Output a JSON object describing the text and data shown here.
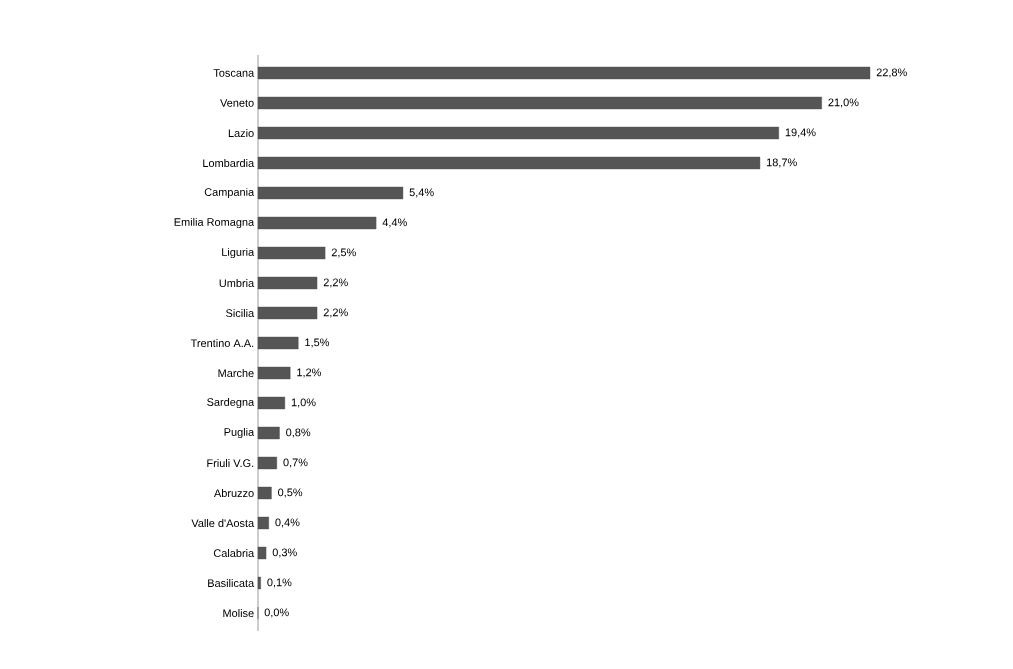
{
  "chart_data": {
    "type": "bar",
    "orientation": "horizontal",
    "categories": [
      "Toscana",
      "Veneto",
      "Lazio",
      "Lombardia",
      "Campania",
      "Emilia Romagna",
      "Liguria",
      "Umbria",
      "Sicilia",
      "Trentino A.A.",
      "Marche",
      "Sardegna",
      "Puglia",
      "Friuli V.G.",
      "Abruzzo",
      "Valle d'Aosta",
      "Calabria",
      "Basilicata",
      "Molise"
    ],
    "values": [
      22.8,
      21.0,
      19.4,
      18.7,
      5.4,
      4.4,
      2.5,
      2.2,
      2.2,
      1.5,
      1.2,
      1.0,
      0.8,
      0.7,
      0.5,
      0.4,
      0.3,
      0.1,
      0.0
    ],
    "value_labels": [
      "22,8%",
      "21,0%",
      "19,4%",
      "18,7%",
      "5,4%",
      "4,4%",
      "2,5%",
      "2,2%",
      "2,2%",
      "1,5%",
      "1,2%",
      "1,0%",
      "0,8%",
      "0,7%",
      "0,5%",
      "0,4%",
      "0,3%",
      "0,1%",
      "0,0%"
    ],
    "color": "#555555"
  }
}
